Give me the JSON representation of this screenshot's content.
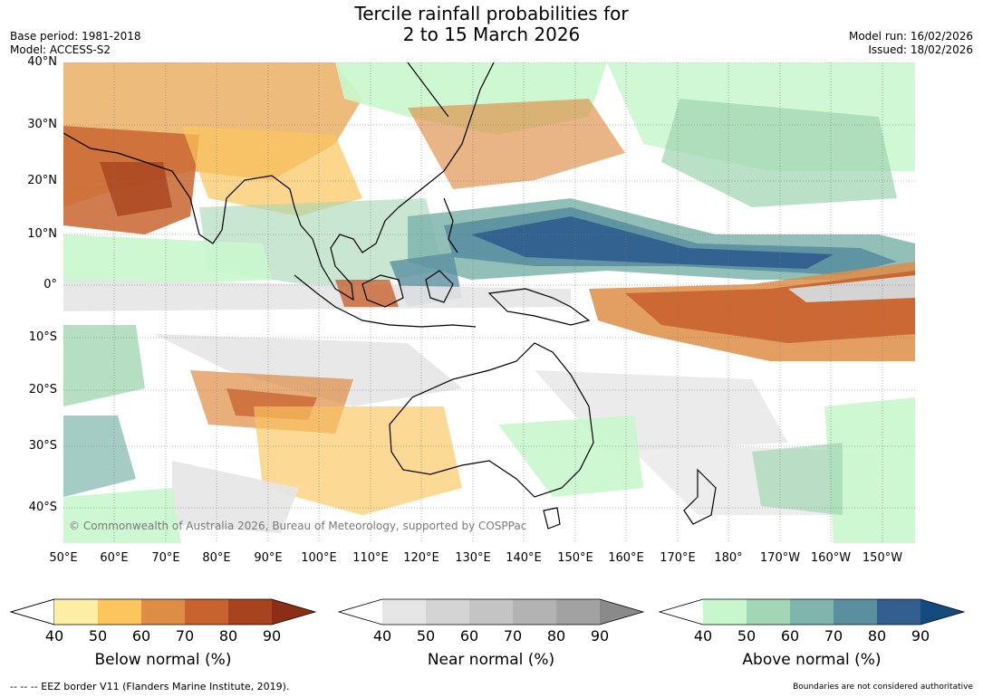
{
  "title_line1": "Tercile rainfall probabilities for",
  "title_line2": "2 to 15 March 2026",
  "base_period": "Base period: 1981-2018",
  "model": "Model: ACCESS-S2",
  "model_run": "Model run: 16/02/2026",
  "issued": "Issued: 18/02/2026",
  "credit": "© Commonwealth of Australia 2026, Bureau of Meteorology, supported by COSPPac",
  "lat_labels": [
    "40°N",
    "30°N",
    "20°N",
    "10°N",
    "0°",
    "10°S",
    "20°S",
    "30°S",
    "40°S"
  ],
  "lon_labels": [
    "50°E",
    "60°E",
    "70°E",
    "80°E",
    "90°E",
    "100°E",
    "110°E",
    "120°E",
    "130°E",
    "140°E",
    "150°E",
    "160°E",
    "170°E",
    "180°",
    "170°W",
    "160°W",
    "150°W"
  ],
  "legends": [
    {
      "title": "Below normal (%)",
      "ticks": [
        "40",
        "50",
        "60",
        "70",
        "80",
        "90"
      ],
      "colors": [
        "#fdeea6",
        "#fcc55e",
        "#de8d45",
        "#c8622f",
        "#a7441f",
        "#8c2e16"
      ]
    },
    {
      "title": "Near normal (%)",
      "ticks": [
        "40",
        "50",
        "60",
        "70",
        "80",
        "90"
      ],
      "colors": [
        "#e6e6e6",
        "#d4d4d4",
        "#c4c4c4",
        "#b3b3b3",
        "#a2a2a2",
        "#8a8a8a"
      ]
    },
    {
      "title": "Above normal (%)",
      "ticks": [
        "40",
        "50",
        "60",
        "70",
        "80",
        "90"
      ],
      "colors": [
        "#c9f7cd",
        "#a3d6b4",
        "#7fb5ad",
        "#5a8fa0",
        "#325f8f",
        "#134b7e"
      ]
    }
  ],
  "footer_left": "--  --  -- EEZ border V11 (Flanders Marine Institute, 2019).",
  "footer_right": "Boundaries are not considered authoritative"
}
